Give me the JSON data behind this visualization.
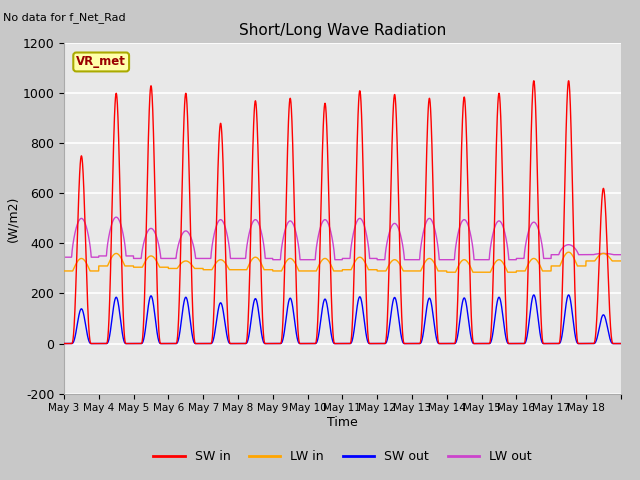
{
  "title": "Short/Long Wave Radiation",
  "xlabel": "Time",
  "ylabel": "(W/m2)",
  "top_left_text": "No data for f_Net_Rad",
  "station_label": "VR_met",
  "ylim": [
    -200,
    1200
  ],
  "yticks": [
    -200,
    0,
    200,
    400,
    600,
    800,
    1000,
    1200
  ],
  "n_days": 16,
  "colors": {
    "SW_in": "#ff0000",
    "LW_in": "#ffa500",
    "SW_out": "#0000ff",
    "LW_out": "#cc44cc"
  },
  "fig_bg": "#c8c8c8",
  "plot_bg": "#e8e8e8",
  "grid_color": "#ffffff",
  "legend_labels": [
    "SW in",
    "LW in",
    "SW out",
    "LW out"
  ],
  "sw_peaks": [
    750,
    1000,
    1030,
    1000,
    880,
    970,
    980,
    960,
    1010,
    995,
    980,
    985,
    1000,
    1050,
    1050,
    620
  ],
  "lw_in_base": [
    290,
    310,
    305,
    300,
    295,
    295,
    290,
    290,
    295,
    290,
    290,
    285,
    285,
    290,
    310,
    330
  ],
  "lw_in_day_bump": [
    50,
    50,
    45,
    30,
    40,
    50,
    50,
    50,
    50,
    45,
    50,
    50,
    50,
    50,
    55,
    30
  ],
  "lw_out_night": [
    345,
    350,
    340,
    340,
    340,
    340,
    335,
    335,
    340,
    335,
    335,
    335,
    335,
    340,
    355,
    355
  ],
  "lw_out_day_peak": [
    500,
    505,
    460,
    450,
    495,
    495,
    490,
    495,
    500,
    480,
    500,
    495,
    490,
    485,
    395,
    360
  ]
}
